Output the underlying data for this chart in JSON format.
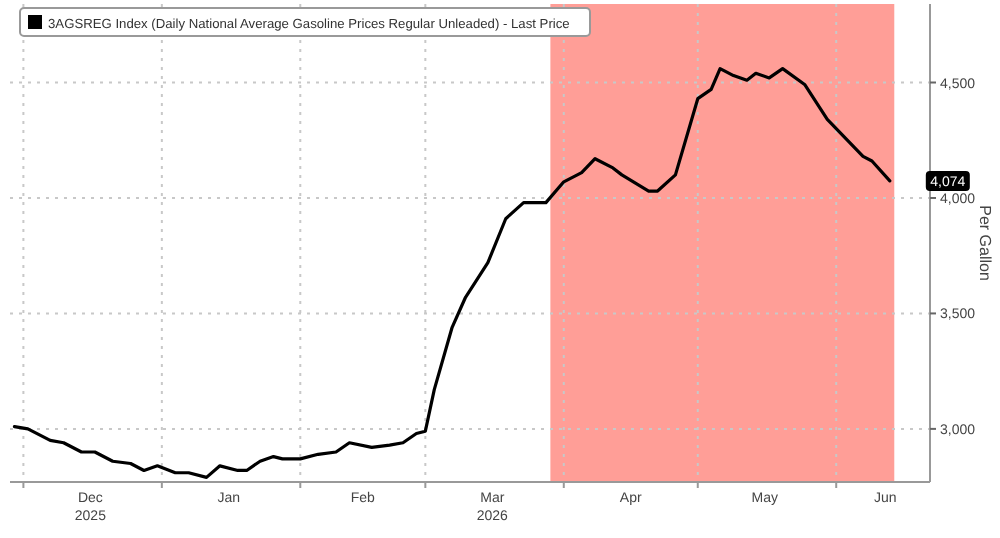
{
  "chart_data": {
    "type": "line",
    "ylabel": "Per Gallon",
    "legend": "top left",
    "grid": true,
    "line_style": "solid",
    "xlim": [
      "2025-11-28",
      "2026-06-22"
    ],
    "ylim": [
      2770,
      4840
    ],
    "yticks": [
      {
        "value": 3000,
        "label": "3,000"
      },
      {
        "value": 3500,
        "label": "3,500"
      },
      {
        "value": 4000,
        "label": "4,000"
      },
      {
        "value": 4500,
        "label": "4,500"
      }
    ],
    "xticks": [
      {
        "value": "2025-12-01",
        "label": null
      },
      {
        "value": "2025-12-16",
        "label": "Dec\n2025"
      },
      {
        "value": "2026-01-01",
        "label": null
      },
      {
        "value": "2026-01-16",
        "label": "Jan"
      },
      {
        "value": "2026-02-01",
        "label": null
      },
      {
        "value": "2026-02-15",
        "label": "Feb"
      },
      {
        "value": "2026-03-01",
        "label": null
      },
      {
        "value": "2026-03-16",
        "label": "Mar\n2026"
      },
      {
        "value": "2026-04-01",
        "label": null
      },
      {
        "value": "2026-04-16",
        "label": "Apr"
      },
      {
        "value": "2026-05-01",
        "label": null
      },
      {
        "value": "2026-05-16",
        "label": "May"
      },
      {
        "value": "2026-06-01",
        "label": null
      },
      {
        "value": "2026-06-12",
        "label": "Jun"
      }
    ],
    "bands": [
      {
        "axis": "x",
        "from": "2026-03-29",
        "to": "2026-06-14",
        "color": "#ff9e97"
      }
    ],
    "annotations": [
      {
        "text": "4,074",
        "x": "2026-06-13",
        "y": 4074
      }
    ],
    "series": [
      {
        "name": "3AGSREG Index (Daily National Average Gasoline Prices Regular Unleaded) - Last Price",
        "color": "#000000",
        "x": [
          "2025-11-29",
          "2025-12-02",
          "2025-12-07",
          "2025-12-10",
          "2025-12-14",
          "2025-12-17",
          "2025-12-21",
          "2025-12-25",
          "2025-12-28",
          "2025-12-31",
          "2026-01-04",
          "2026-01-07",
          "2026-01-11",
          "2026-01-14",
          "2026-01-18",
          "2026-01-20",
          "2026-01-23",
          "2026-01-26",
          "2026-01-28",
          "2026-02-01",
          "2026-02-05",
          "2026-02-09",
          "2026-02-12",
          "2026-02-17",
          "2026-02-21",
          "2026-02-24",
          "2026-02-27",
          "2026-03-01",
          "2026-03-03",
          "2026-03-07",
          "2026-03-10",
          "2026-03-15",
          "2026-03-19",
          "2026-03-23",
          "2026-03-28",
          "2026-04-01",
          "2026-04-05",
          "2026-04-08",
          "2026-04-12",
          "2026-04-14",
          "2026-04-20",
          "2026-04-22",
          "2026-04-26",
          "2026-05-01",
          "2026-05-04",
          "2026-05-06",
          "2026-05-09",
          "2026-05-12",
          "2026-05-14",
          "2026-05-17",
          "2026-05-20",
          "2026-05-25",
          "2026-05-30",
          "2026-06-07",
          "2026-06-09",
          "2026-06-13"
        ],
        "values": [
          3010,
          3000,
          2950,
          2940,
          2900,
          2900,
          2860,
          2850,
          2820,
          2840,
          2810,
          2810,
          2790,
          2840,
          2820,
          2820,
          2860,
          2880,
          2870,
          2870,
          2890,
          2900,
          2940,
          2920,
          2930,
          2940,
          2980,
          2990,
          3170,
          3440,
          3570,
          3720,
          3910,
          3980,
          3980,
          4070,
          4110,
          4170,
          4130,
          4100,
          4030,
          4030,
          4100,
          4430,
          4470,
          4560,
          4530,
          4510,
          4540,
          4520,
          4560,
          4490,
          4340,
          4180,
          4160,
          4074
        ]
      }
    ]
  }
}
